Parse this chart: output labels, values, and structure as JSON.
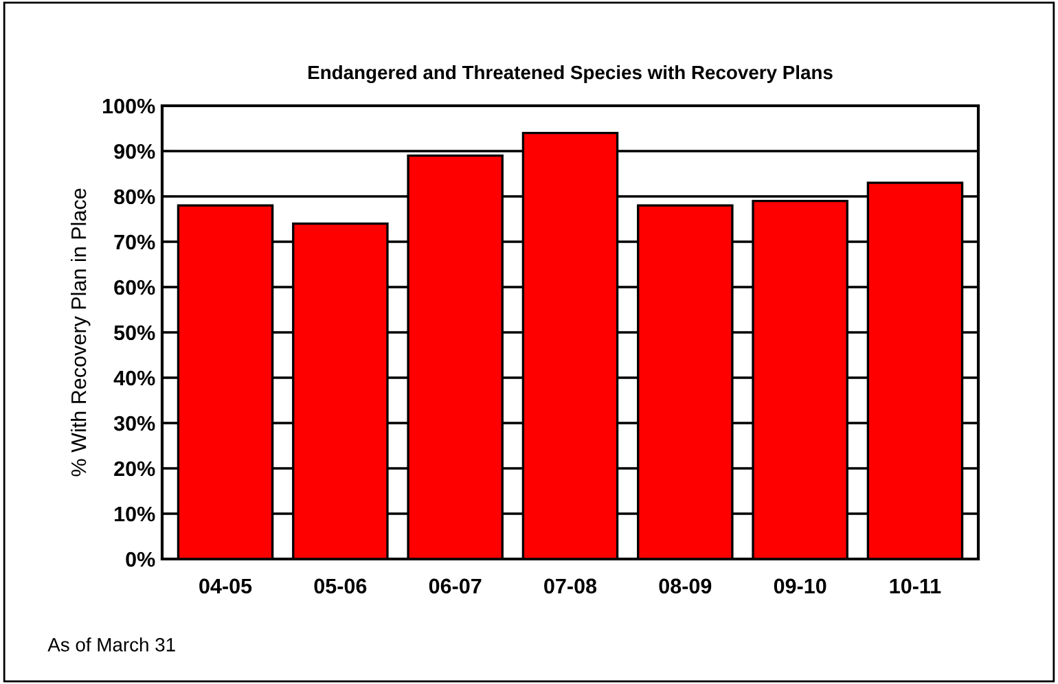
{
  "chart_data": {
    "type": "bar",
    "title": "Endangered and Threatened Species with Recovery Plans",
    "ylabel": "% With Recovery Plan in Place",
    "categories": [
      "04-05",
      "05-06",
      "06-07",
      "07-08",
      "08-09",
      "09-10",
      "10-11"
    ],
    "values": [
      78,
      74,
      89,
      94,
      78,
      79,
      83
    ],
    "color": "#ff0000",
    "ylim": [
      0,
      100
    ],
    "yticks": [
      {
        "value": 0,
        "label": "0%"
      },
      {
        "value": 10,
        "label": "10%"
      },
      {
        "value": 20,
        "label": "20%"
      },
      {
        "value": 30,
        "label": "30%"
      },
      {
        "value": 40,
        "label": "40%"
      },
      {
        "value": 50,
        "label": "50%"
      },
      {
        "value": 60,
        "label": "60%"
      },
      {
        "value": 70,
        "label": "70%"
      },
      {
        "value": 80,
        "label": "80%"
      },
      {
        "value": 90,
        "label": "90%"
      },
      {
        "value": 100,
        "label": "100%"
      }
    ],
    "grid": "y",
    "annotations": [
      "As of March 31"
    ]
  }
}
